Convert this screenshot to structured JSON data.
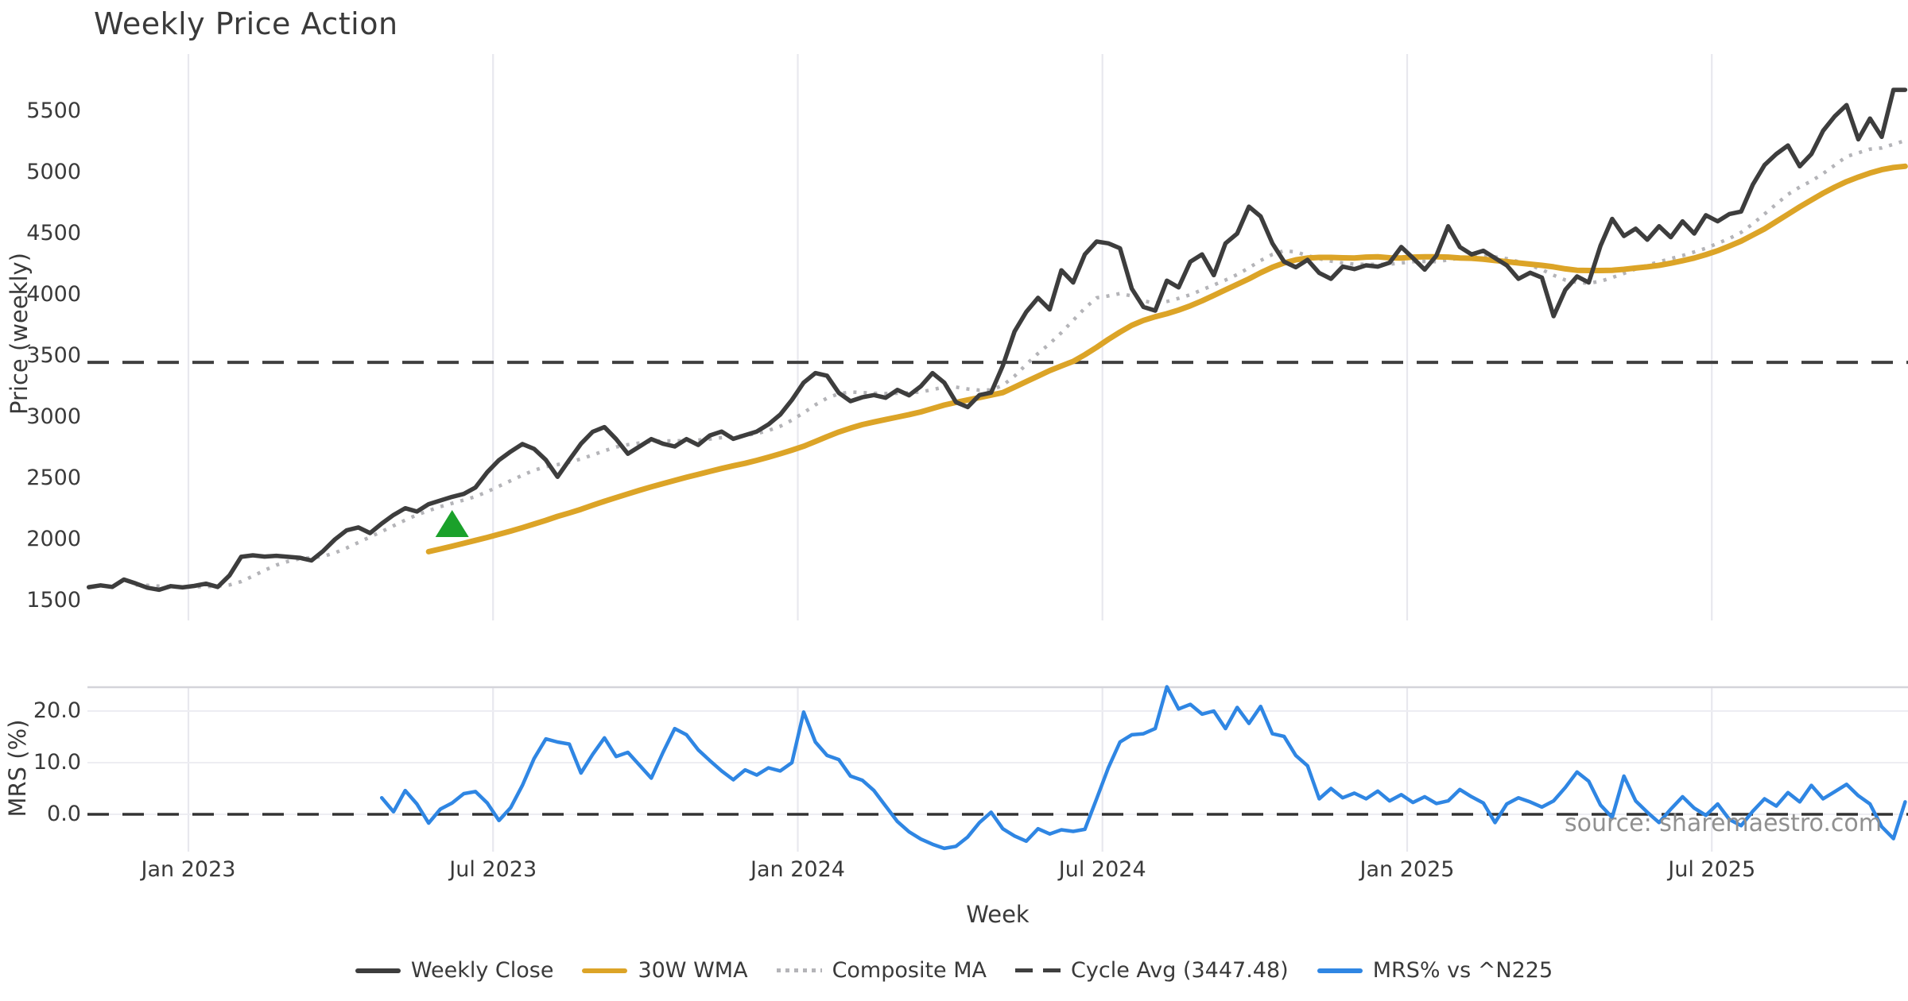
{
  "title": "Weekly Price Action",
  "source_note": "source: sharemaestro.com",
  "colors": {
    "weekly_close": "#3d3d3d",
    "wma_gold": "#dca427",
    "composite_gray": "#b4b4b8",
    "cycle_dark": "#3f3f3f",
    "mrs_blue": "#2f86e3",
    "marker_green": "#1ba12b",
    "grid": "#e8e8ee",
    "separator": "#d4d4da",
    "text": "#3a3a3a",
    "muted": "#909090"
  },
  "x_axis": {
    "label": "Week",
    "tick_labels": [
      "Jan 2023",
      "Jul 2023",
      "Jan 2024",
      "Jul 2024",
      "Jan 2025",
      "Jul 2025"
    ],
    "tick_weeks": [
      8.5,
      34.5,
      60.5,
      86.5,
      112.5,
      138.5
    ],
    "total_weeks": 155
  },
  "chart_data": [
    {
      "type": "line",
      "panel": "price",
      "ylabel": "Price (weekly)",
      "xlabel": "Week",
      "ylim": [
        1350,
        5850
      ],
      "y_ticks": [
        5500,
        5000,
        4500,
        4000,
        3500,
        3000,
        2500,
        2000,
        1500
      ],
      "grid": "vertical-only",
      "marker": {
        "shape": "triangle-up",
        "icon": "buy-signal-marker",
        "color": "#1ba12b",
        "week": 31,
        "value": 2130
      },
      "series": [
        {
          "name": "Weekly Close",
          "style": "solid",
          "width": 5.5,
          "color": "#3d3d3d",
          "start_week": 0,
          "values": [
            1610,
            1625,
            1612,
            1672,
            1640,
            1605,
            1588,
            1618,
            1608,
            1620,
            1638,
            1612,
            1705,
            1858,
            1870,
            1860,
            1866,
            1858,
            1850,
            1828,
            1905,
            2000,
            2075,
            2098,
            2052,
            2130,
            2200,
            2255,
            2228,
            2288,
            2318,
            2348,
            2372,
            2425,
            2550,
            2648,
            2718,
            2780,
            2740,
            2650,
            2512,
            2650,
            2782,
            2880,
            2918,
            2820,
            2700,
            2760,
            2820,
            2782,
            2760,
            2820,
            2772,
            2850,
            2882,
            2822,
            2852,
            2882,
            2940,
            3020,
            3140,
            3282,
            3360,
            3338,
            3198,
            3130,
            3162,
            3180,
            3158,
            3222,
            3178,
            3252,
            3360,
            3282,
            3122,
            3082,
            3180,
            3200,
            3420,
            3700,
            3860,
            3975,
            3880,
            4200,
            4100,
            4330,
            4435,
            4420,
            4380,
            4050,
            3900,
            3870,
            4115,
            4060,
            4270,
            4330,
            4160,
            4420,
            4500,
            4720,
            4640,
            4420,
            4270,
            4225,
            4285,
            4178,
            4130,
            4230,
            4210,
            4240,
            4230,
            4262,
            4390,
            4300,
            4205,
            4320,
            4560,
            4390,
            4330,
            4360,
            4300,
            4240,
            4130,
            4180,
            4140,
            3825,
            4040,
            4150,
            4100,
            4400,
            4620,
            4480,
            4540,
            4450,
            4560,
            4470,
            4600,
            4500,
            4650,
            4600,
            4660,
            4680,
            4900,
            5060,
            5150,
            5220,
            5050,
            5150,
            5340,
            5460,
            5550,
            5270,
            5440,
            5290,
            5675,
            5675
          ]
        },
        {
          "name": "30W WMA",
          "style": "solid",
          "width": 7,
          "color": "#dca427",
          "start_week": 29,
          "values": [
            1900,
            1922,
            1945,
            1968,
            1992,
            2016,
            2042,
            2068,
            2096,
            2126,
            2156,
            2188,
            2216,
            2246,
            2280,
            2312,
            2342,
            2372,
            2402,
            2430,
            2456,
            2482,
            2508,
            2532,
            2556,
            2580,
            2602,
            2622,
            2646,
            2672,
            2700,
            2730,
            2762,
            2800,
            2840,
            2878,
            2910,
            2938,
            2960,
            2980,
            3000,
            3020,
            3042,
            3070,
            3098,
            3120,
            3140,
            3160,
            3180,
            3200,
            3245,
            3290,
            3335,
            3380,
            3418,
            3455,
            3510,
            3570,
            3635,
            3695,
            3750,
            3790,
            3820,
            3845,
            3875,
            3910,
            3950,
            3995,
            4040,
            4085,
            4130,
            4180,
            4225,
            4260,
            4285,
            4300,
            4305,
            4305,
            4302,
            4300,
            4308,
            4310,
            4302,
            4300,
            4308,
            4310,
            4310,
            4308,
            4300,
            4298,
            4290,
            4280,
            4270,
            4260,
            4250,
            4240,
            4228,
            4212,
            4200,
            4198,
            4198,
            4200,
            4208,
            4218,
            4228,
            4240,
            4258,
            4278,
            4300,
            4328,
            4360,
            4398,
            4438,
            4488,
            4538,
            4598,
            4658,
            4718,
            4775,
            4830,
            4880,
            4925,
            4962,
            4995,
            5022,
            5040,
            5050
          ]
        },
        {
          "name": "Composite MA",
          "style": "dotted",
          "width": 4.5,
          "color": "#b4b4b8",
          "start_week": 4,
          "values": [
            1628,
            1625,
            1618,
            1615,
            1612,
            1612,
            1615,
            1618,
            1628,
            1655,
            1700,
            1748,
            1790,
            1820,
            1842,
            1850,
            1862,
            1890,
            1930,
            1975,
            2020,
            2065,
            2112,
            2158,
            2200,
            2235,
            2268,
            2295,
            2322,
            2350,
            2390,
            2435,
            2480,
            2525,
            2565,
            2595,
            2612,
            2632,
            2658,
            2690,
            2725,
            2755,
            2775,
            2788,
            2800,
            2805,
            2805,
            2808,
            2812,
            2820,
            2832,
            2840,
            2850,
            2865,
            2890,
            2925,
            2975,
            3035,
            3100,
            3155,
            3190,
            3205,
            3200,
            3195,
            3192,
            3195,
            3198,
            3205,
            3225,
            3245,
            3245,
            3230,
            3220,
            3222,
            3260,
            3335,
            3430,
            3520,
            3600,
            3690,
            3790,
            3890,
            3975,
            3990,
            4010,
            3990,
            3950,
            3930,
            3945,
            3970,
            4000,
            4040,
            4080,
            4120,
            4165,
            4220,
            4280,
            4330,
            4360,
            4350,
            4320,
            4295,
            4275,
            4260,
            4250,
            4248,
            4248,
            4250,
            4260,
            4270,
            4272,
            4270,
            4285,
            4300,
            4310,
            4315,
            4310,
            4295,
            4270,
            4240,
            4205,
            4160,
            4120,
            4100,
            4095,
            4110,
            4140,
            4175,
            4210,
            4240,
            4270,
            4295,
            4320,
            4350,
            4380,
            4420,
            4460,
            4510,
            4580,
            4660,
            4740,
            4820,
            4880,
            4930,
            4990,
            5060,
            5130,
            5160,
            5190,
            5200,
            5230,
            5260
          ]
        },
        {
          "name": "Cycle Avg (3447.48)",
          "style": "dashed",
          "width": 4,
          "color": "#3f3f3f",
          "hline": 3447.48
        }
      ]
    },
    {
      "type": "line",
      "panel": "mrs",
      "ylabel": "MRS (%)",
      "y_ticks": [
        20,
        10,
        0
      ],
      "ylim": [
        -7.2,
        24.6
      ],
      "series": [
        {
          "name": "MRS% vs ^N225",
          "style": "solid",
          "width": 4.5,
          "color": "#2f86e3",
          "start_week": 25,
          "values": [
            3.2,
            0.5,
            4.6,
            2.0,
            -1.7,
            1.0,
            2.2,
            4.0,
            4.4,
            2.2,
            -1.2,
            1.3,
            5.6,
            10.8,
            14.6,
            14.0,
            13.6,
            8.0,
            11.6,
            14.8,
            11.2,
            12.0,
            9.5,
            7.0,
            12.0,
            16.6,
            15.4,
            12.5,
            10.4,
            8.4,
            6.7,
            8.6,
            7.6,
            9.0,
            8.4,
            10.0,
            19.8,
            14.0,
            11.4,
            10.6,
            7.4,
            6.6,
            4.6,
            1.6,
            -1.4,
            -3.4,
            -4.8,
            -5.8,
            -6.6,
            -6.2,
            -4.4,
            -1.6,
            0.4,
            -2.8,
            -4.2,
            -5.2,
            -2.8,
            -3.8,
            -3.0,
            -3.3,
            -2.9,
            3.0,
            9.0,
            14.0,
            15.4,
            15.6,
            16.6,
            24.7,
            20.4,
            21.3,
            19.4,
            20.0,
            16.6,
            20.7,
            17.6,
            20.9,
            15.6,
            15.1,
            11.4,
            9.4,
            3.0,
            5.0,
            3.2,
            4.1,
            3.0,
            4.5,
            2.6,
            3.8,
            2.3,
            3.4,
            2.1,
            2.6,
            4.8,
            3.4,
            2.2,
            -1.6,
            2.0,
            3.2,
            2.4,
            1.4,
            2.6,
            5.2,
            8.2,
            6.4,
            1.8,
            -0.6,
            7.4,
            2.6,
            0.4,
            -1.6,
            1.0,
            3.4,
            1.2,
            -0.2,
            2.0,
            -1.0,
            -2.2,
            0.6,
            3.0,
            1.6,
            4.2,
            2.4,
            5.6,
            3.0,
            4.4,
            5.8,
            3.6,
            2.0,
            -2.4,
            -4.7,
            2.4
          ]
        },
        {
          "name": "Zero line",
          "style": "dashed",
          "width": 3.5,
          "color": "#333333",
          "hline": 0
        }
      ]
    }
  ],
  "legend": [
    {
      "label": "Weekly Close",
      "color": "#3d3d3d",
      "style": "solid"
    },
    {
      "label": "30W WMA",
      "color": "#dca427",
      "style": "solid"
    },
    {
      "label": "Composite MA",
      "color": "#b4b4b8",
      "style": "dotted"
    },
    {
      "label": "Cycle Avg (3447.48)",
      "color": "#3f3f3f",
      "style": "dashed"
    },
    {
      "label": "MRS% vs ^N225",
      "color": "#2f86e3",
      "style": "solid"
    }
  ]
}
